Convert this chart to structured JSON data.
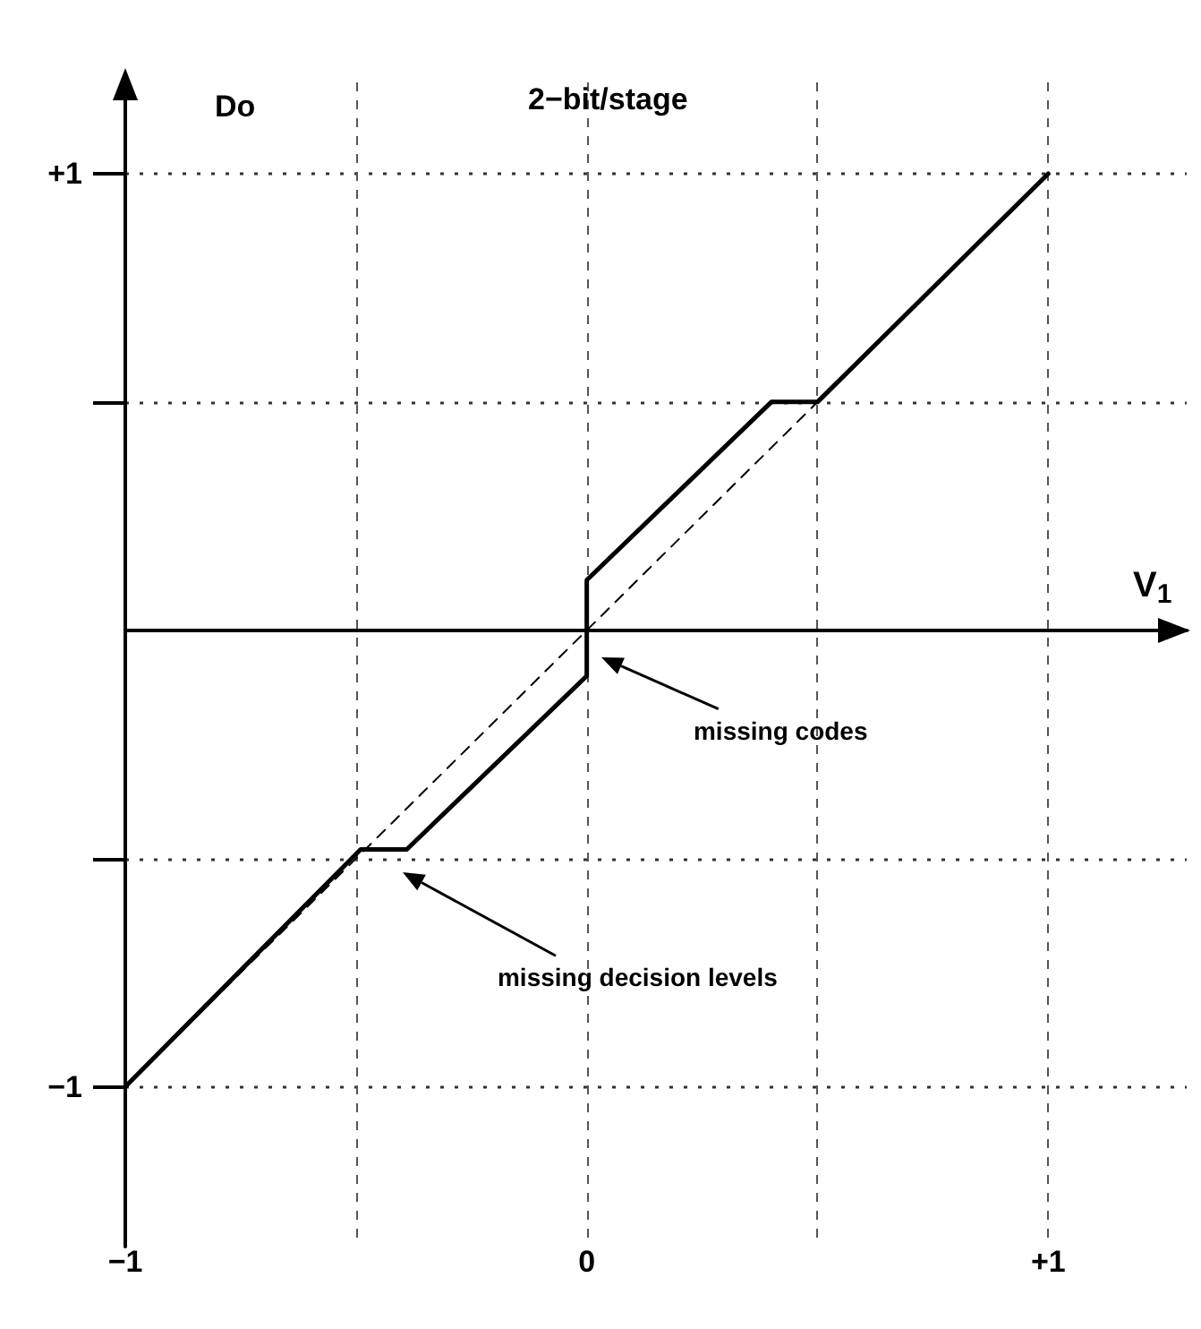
{
  "chart_data": {
    "type": "line",
    "title": "2−bit/stage",
    "xlabel": "V$_{1}$",
    "ylabel": "Do",
    "series": [
      {
        "color": "#000000",
        "line_style": "solid",
        "x": [
          -1,
          -0.49,
          -0.39,
          0,
          0,
          0.4,
          0.5,
          1
        ],
        "values": [
          -1,
          -0.48,
          -0.48,
          -0.1,
          0.11,
          0.5,
          0.5,
          1
        ]
      },
      {
        "color": "#000000",
        "line_style": "dashed",
        "x": [
          -1,
          1
        ],
        "values": [
          -1,
          1
        ]
      }
    ],
    "xlim": [
      -1,
      1.3
    ],
    "ylim": [
      -1.35,
      1.2
    ],
    "xticks": [
      {
        "value": -1,
        "label": "−1"
      },
      {
        "value": -0.5,
        "label": null
      },
      {
        "value": 0,
        "label": "0"
      },
      {
        "value": 0.5,
        "label": null
      },
      {
        "value": 1,
        "label": "+1"
      }
    ],
    "yticks": [
      {
        "value": -1,
        "label": "−1"
      },
      {
        "value": -0.5,
        "label": null
      },
      {
        "value": 0.5,
        "label": null
      },
      {
        "value": 1,
        "label": "+1"
      }
    ],
    "grid": true,
    "marker": "none",
    "annotations": [
      "missing codes",
      "missing decision levels"
    ]
  }
}
